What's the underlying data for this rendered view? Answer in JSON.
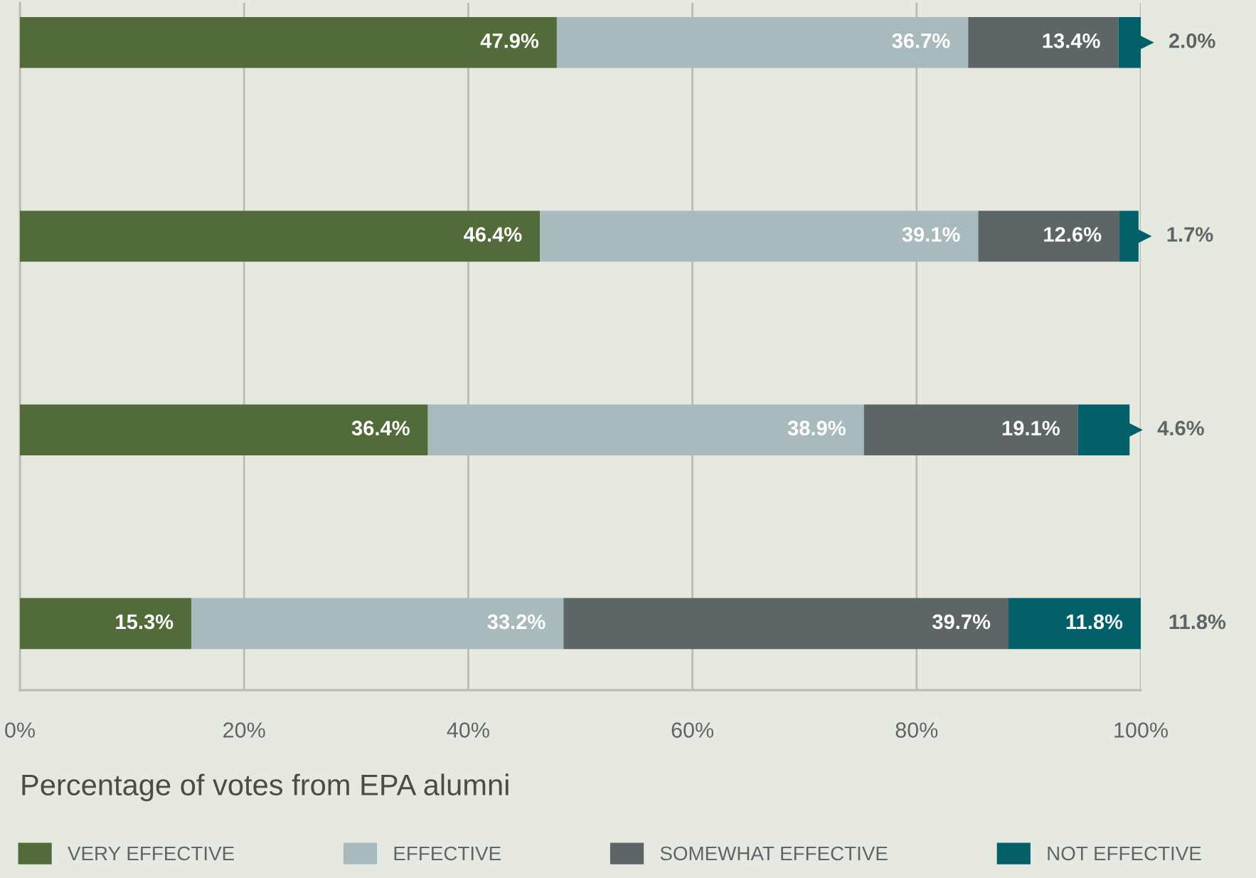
{
  "chart_data": {
    "type": "bar",
    "orientation": "horizontal",
    "stacked": true,
    "categories": [
      null,
      null,
      null,
      null
    ],
    "series": [
      {
        "name": "VERY EFFECTIVE",
        "color": "#536a3b",
        "values": [
          47.9,
          46.4,
          36.4,
          15.3
        ],
        "value_labels": [
          "47.9%",
          "46.4%",
          "36.4%",
          "15.3%"
        ]
      },
      {
        "name": "EFFECTIVE",
        "color": "#a8babc",
        "values": [
          36.7,
          39.1,
          38.9,
          33.2
        ],
        "value_labels": [
          "36.7%",
          "39.1%",
          "38.9%",
          "33.2%"
        ]
      },
      {
        "name": "SOMEWHAT EFFECTIVE",
        "color": "#5e6567",
        "values": [
          13.4,
          12.6,
          19.1,
          39.7
        ],
        "value_labels": [
          "13.4%",
          "12.6%",
          "19.1%",
          "39.7%"
        ]
      },
      {
        "name": "NOT EFFECTIVE",
        "color": "#03606a",
        "values": [
          2.0,
          1.7,
          4.6,
          11.8
        ],
        "value_labels": [
          "2.0%",
          "1.7%",
          "4.6%",
          "11.8%"
        ]
      }
    ],
    "xlim": [
      0,
      100
    ],
    "xticks": [
      {
        "value": 0,
        "label": "0%"
      },
      {
        "value": 20,
        "label": "20%"
      },
      {
        "value": 40,
        "label": "40%"
      },
      {
        "value": 60,
        "label": "60%"
      },
      {
        "value": 80,
        "label": "80%"
      },
      {
        "value": 100,
        "label": "100%"
      }
    ],
    "xlabel": "Percentage of votes from EPA alumni",
    "grid": "x",
    "legend": "bottom"
  }
}
